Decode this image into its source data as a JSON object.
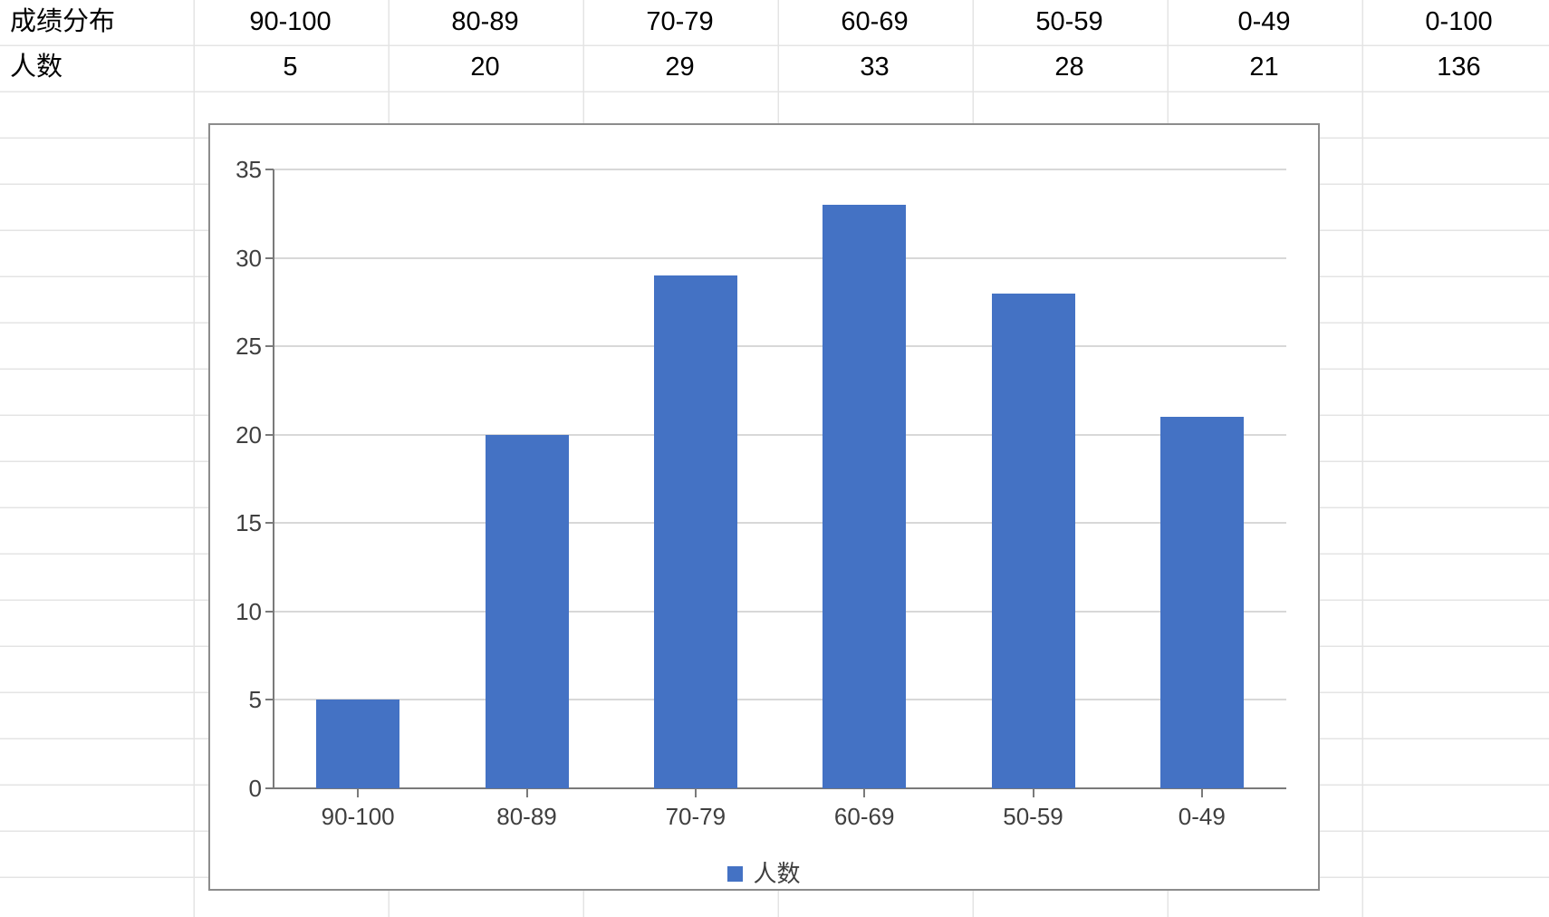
{
  "table": {
    "row1_header": "成绩分布",
    "row2_header": "人数",
    "columns": [
      "90-100",
      "80-89",
      "70-79",
      "60-69",
      "50-59",
      "0-49",
      "0-100"
    ],
    "values": [
      "5",
      "20",
      "29",
      "33",
      "28",
      "21",
      "136"
    ]
  },
  "chart_data": {
    "type": "bar",
    "categories": [
      "90-100",
      "80-89",
      "70-79",
      "60-69",
      "50-59",
      "0-49"
    ],
    "series": [
      {
        "name": "人数",
        "values": [
          5,
          20,
          29,
          33,
          28,
          21
        ]
      }
    ],
    "title": "",
    "xlabel": "",
    "ylabel": "",
    "ylim": [
      0,
      35
    ],
    "ytick_step": 5,
    "yticks": [
      0,
      5,
      10,
      15,
      20,
      25,
      30,
      35
    ],
    "grid": true,
    "legend_position": "bottom",
    "legend_label": "人数"
  },
  "colors": {
    "bar": "#4472C4",
    "plot_grid": "#D8D8D8",
    "axis": "#7A7A7A",
    "axis_text": "#3F3F3F",
    "table_text": "#000000",
    "sheet_grid": "#E4E4E4",
    "chart_border": "#8C8C8C"
  }
}
